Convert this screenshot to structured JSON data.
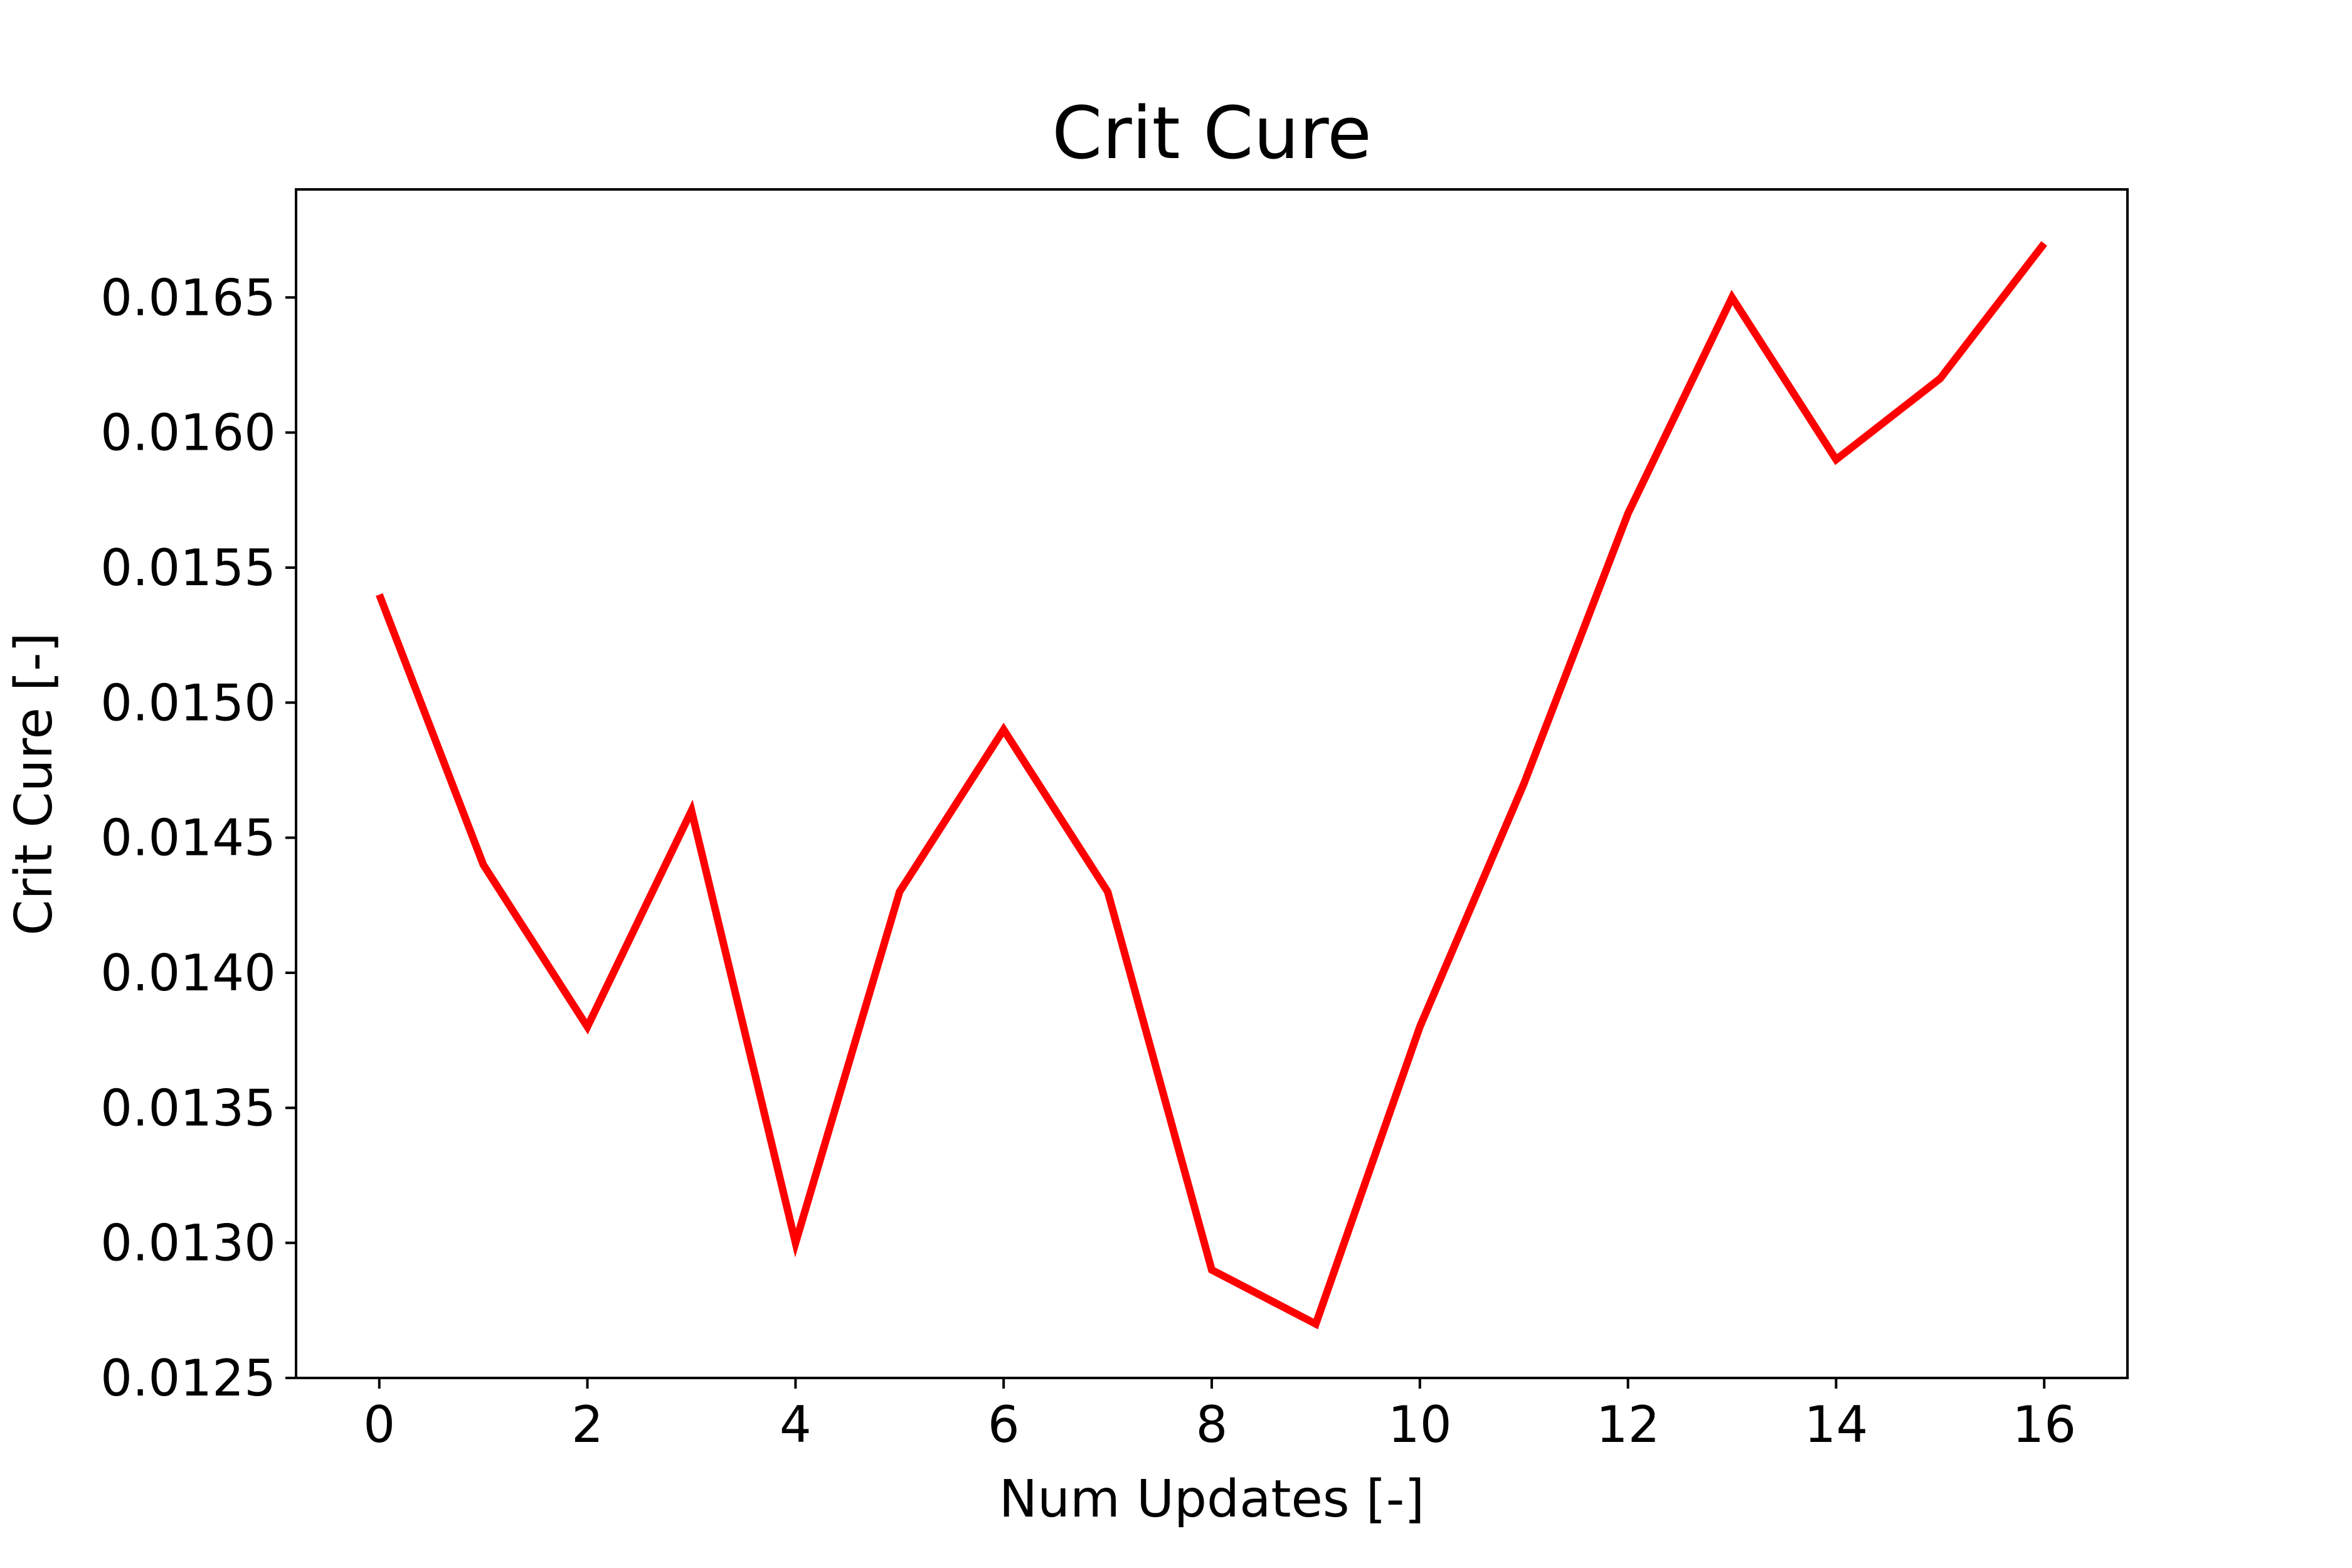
{
  "chart_data": {
    "type": "line",
    "title": "Crit Cure",
    "xlabel": "Num Updates [-]",
    "ylabel": "Crit Cure [-]",
    "xlim": [
      -0.8,
      16.8
    ],
    "ylim": [
      0.0125,
      0.0169
    ],
    "xticks": [
      0,
      2,
      4,
      6,
      8,
      10,
      12,
      14,
      16
    ],
    "xtick_labels": [
      "0",
      "2",
      "4",
      "6",
      "8",
      "10",
      "12",
      "14",
      "16"
    ],
    "yticks": [
      0.0125,
      0.013,
      0.0135,
      0.014,
      0.0145,
      0.015,
      0.0155,
      0.016,
      0.0165
    ],
    "ytick_labels": [
      "0.0125",
      "0.0130",
      "0.0135",
      "0.0140",
      "0.0145",
      "0.0150",
      "0.0155",
      "0.0160",
      "0.0165"
    ],
    "grid": false,
    "legend": "none",
    "series": [
      {
        "color": "#ff0000",
        "x": [
          0,
          1,
          2,
          3,
          4,
          5,
          6,
          7,
          8,
          9,
          10,
          11,
          12,
          13,
          14,
          15,
          16
        ],
        "y": [
          0.0154,
          0.0144,
          0.0138,
          0.0146,
          0.013,
          0.0143,
          0.0149,
          0.0143,
          0.0129,
          0.0127,
          0.0138,
          0.0147,
          0.0157,
          0.0165,
          0.0159,
          0.0162,
          0.0167
        ]
      }
    ]
  }
}
